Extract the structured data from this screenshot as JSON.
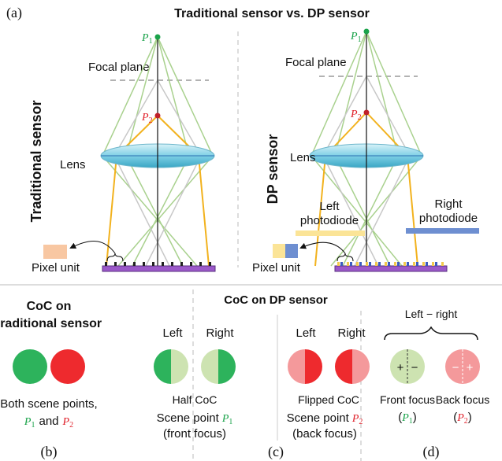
{
  "panel_a": {
    "label": "(a)",
    "title": "Traditional sensor vs. DP sensor",
    "traditional": {
      "side_label": "Traditional sensor",
      "focal_plane": "Focal plane",
      "lens": "Lens",
      "pixel_unit": "Pixel unit",
      "p1": {
        "letter": "P",
        "sub": "1"
      },
      "p2": {
        "letter": "P",
        "sub": "2"
      }
    },
    "dp": {
      "side_label": "DP sensor",
      "focal_plane": "Focal plane",
      "lens": "Lens",
      "pixel_unit": "Pixel unit",
      "left_photodiode": [
        "Left",
        "photodiode"
      ],
      "right_photodiode": [
        "Right",
        "photodiode"
      ],
      "p1": {
        "letter": "P",
        "sub": "1"
      },
      "p2": {
        "letter": "P",
        "sub": "2"
      }
    }
  },
  "panel_b": {
    "label": "(b)",
    "title": [
      "CoC on",
      "traditional sensor"
    ],
    "caption": "Both scene points,",
    "p1": {
      "letter": "P",
      "sub": "1"
    },
    "joiner": "and",
    "p2": {
      "letter": "P",
      "sub": "2"
    }
  },
  "panel_c": {
    "label": "(c)",
    "title": "CoC on DP sensor",
    "half": {
      "left": "Left",
      "right": "Right",
      "name": "Half CoC",
      "scene": "Scene point",
      "point": {
        "letter": "P",
        "sub": "1"
      },
      "focus": "(front focus)"
    },
    "flipped": {
      "left": "Left",
      "right": "Right",
      "name": "Flipped CoC",
      "scene": "Scene point",
      "point": {
        "letter": "P",
        "sub": "2"
      },
      "focus": "(back focus)"
    }
  },
  "panel_d": {
    "label": "(d)",
    "title": "Left − right",
    "front": {
      "plus": "+",
      "minus": "−",
      "name": "Front focus",
      "point": {
        "letter": "P",
        "sub": "1"
      }
    },
    "back": {
      "plus": "+",
      "minus": "−",
      "name": "Back focus",
      "point": {
        "letter": "P",
        "sub": "2"
      }
    }
  }
}
